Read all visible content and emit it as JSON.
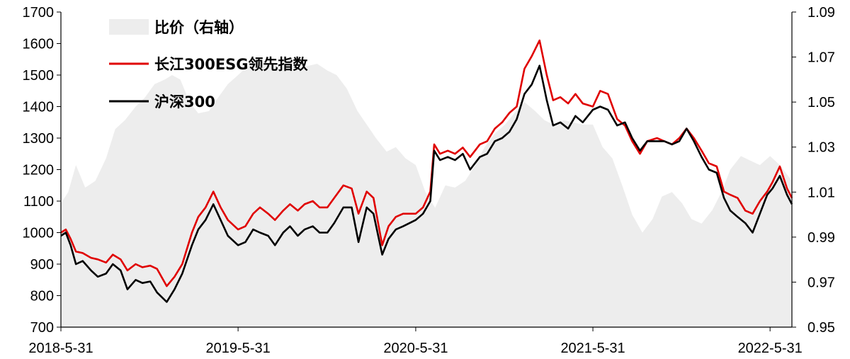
{
  "chart_data": {
    "type": "line",
    "title": "",
    "x_ticks": [
      "2018-5-31",
      "2019-5-31",
      "2020-5-31",
      "2021-5-31",
      "2022-5-31"
    ],
    "x_range": [
      "2018-05-31",
      "2022-07-15"
    ],
    "y_left": {
      "ticks": [
        "700",
        "800",
        "900",
        "1000",
        "1100",
        "1200",
        "1300",
        "1400",
        "1500",
        "1600",
        "1700"
      ],
      "range": [
        700,
        1700
      ]
    },
    "y_right": {
      "ticks": [
        "0.95",
        "0.97",
        "0.99",
        "1.01",
        "1.03",
        "1.05",
        "1.07",
        "1.09"
      ],
      "range": [
        0.95,
        1.09
      ]
    },
    "legend": {
      "position": "top-left"
    },
    "grid": false,
    "series": [
      {
        "name": "比价（右轴）",
        "type": "area",
        "axis": "right",
        "color": "#ededed",
        "points": [
          [
            "2018-05-31",
            1.005
          ],
          [
            "2018-06-15",
            1.01
          ],
          [
            "2018-07-01",
            1.022
          ],
          [
            "2018-07-20",
            1.012
          ],
          [
            "2018-08-10",
            1.015
          ],
          [
            "2018-09-01",
            1.025
          ],
          [
            "2018-09-20",
            1.038
          ],
          [
            "2018-10-10",
            1.042
          ],
          [
            "2018-11-01",
            1.048
          ],
          [
            "2018-11-20",
            1.052
          ],
          [
            "2018-12-10",
            1.058
          ],
          [
            "2018-12-31",
            1.06
          ],
          [
            "2019-01-15",
            1.062
          ],
          [
            "2019-02-01",
            1.06
          ],
          [
            "2019-02-20",
            1.05
          ],
          [
            "2019-03-10",
            1.045
          ],
          [
            "2019-04-01",
            1.046
          ],
          [
            "2019-04-20",
            1.052
          ],
          [
            "2019-05-10",
            1.058
          ],
          [
            "2019-05-31",
            1.062
          ],
          [
            "2019-06-20",
            1.066
          ],
          [
            "2019-07-10",
            1.068
          ],
          [
            "2019-08-01",
            1.067
          ],
          [
            "2019-08-20",
            1.066
          ],
          [
            "2019-09-10",
            1.068
          ],
          [
            "2019-10-01",
            1.065
          ],
          [
            "2019-10-20",
            1.066
          ],
          [
            "2019-11-10",
            1.067
          ],
          [
            "2019-12-01",
            1.064
          ],
          [
            "2019-12-20",
            1.062
          ],
          [
            "2020-01-10",
            1.056
          ],
          [
            "2020-02-01",
            1.046
          ],
          [
            "2020-02-20",
            1.04
          ],
          [
            "2020-03-10",
            1.034
          ],
          [
            "2020-04-01",
            1.028
          ],
          [
            "2020-04-20",
            1.03
          ],
          [
            "2020-05-10",
            1.025
          ],
          [
            "2020-05-31",
            1.022
          ],
          [
            "2020-06-20",
            1.01
          ],
          [
            "2020-07-10",
            1.003
          ],
          [
            "2020-07-31",
            1.013
          ],
          [
            "2020-08-20",
            1.012
          ],
          [
            "2020-09-10",
            1.015
          ],
          [
            "2020-10-01",
            1.022
          ],
          [
            "2020-10-20",
            1.03
          ],
          [
            "2020-11-10",
            1.036
          ],
          [
            "2020-12-01",
            1.04
          ],
          [
            "2020-12-20",
            1.045
          ],
          [
            "2021-01-10",
            1.05
          ],
          [
            "2021-02-01",
            1.046
          ],
          [
            "2021-02-20",
            1.042
          ],
          [
            "2021-03-10",
            1.04
          ],
          [
            "2021-04-01",
            1.042
          ],
          [
            "2021-04-20",
            1.041
          ],
          [
            "2021-05-10",
            1.04
          ],
          [
            "2021-05-31",
            1.04
          ],
          [
            "2021-06-20",
            1.03
          ],
          [
            "2021-07-10",
            1.025
          ],
          [
            "2021-08-01",
            1.012
          ],
          [
            "2021-08-20",
            1.0
          ],
          [
            "2021-09-10",
            0.992
          ],
          [
            "2021-10-01",
            0.998
          ],
          [
            "2021-10-20",
            1.008
          ],
          [
            "2021-11-10",
            1.01
          ],
          [
            "2021-12-01",
            1.005
          ],
          [
            "2021-12-20",
            0.998
          ],
          [
            "2022-01-10",
            0.996
          ],
          [
            "2022-02-01",
            1.002
          ],
          [
            "2022-02-20",
            1.01
          ],
          [
            "2022-03-10",
            1.02
          ],
          [
            "2022-04-01",
            1.026
          ],
          [
            "2022-04-20",
            1.024
          ],
          [
            "2022-05-10",
            1.022
          ],
          [
            "2022-05-31",
            1.026
          ],
          [
            "2022-06-20",
            1.022
          ],
          [
            "2022-07-15",
            1.015
          ]
        ]
      },
      {
        "name": "长江300ESG领先指数",
        "type": "line",
        "axis": "left",
        "color": "#e00000",
        "points": [
          [
            "2018-05-31",
            1000
          ],
          [
            "2018-06-10",
            1010
          ],
          [
            "2018-06-20",
            980
          ],
          [
            "2018-07-01",
            940
          ],
          [
            "2018-07-15",
            935
          ],
          [
            "2018-08-01",
            920
          ],
          [
            "2018-08-15",
            915
          ],
          [
            "2018-09-01",
            905
          ],
          [
            "2018-09-15",
            930
          ],
          [
            "2018-10-01",
            915
          ],
          [
            "2018-10-15",
            880
          ],
          [
            "2018-11-01",
            900
          ],
          [
            "2018-11-15",
            890
          ],
          [
            "2018-12-01",
            895
          ],
          [
            "2018-12-15",
            885
          ],
          [
            "2019-01-04",
            830
          ],
          [
            "2019-01-20",
            860
          ],
          [
            "2019-02-05",
            900
          ],
          [
            "2019-02-25",
            1000
          ],
          [
            "2019-03-10",
            1050
          ],
          [
            "2019-03-25",
            1080
          ],
          [
            "2019-04-10",
            1130
          ],
          [
            "2019-04-25",
            1080
          ],
          [
            "2019-05-10",
            1040
          ],
          [
            "2019-05-31",
            1010
          ],
          [
            "2019-06-15",
            1020
          ],
          [
            "2019-07-01",
            1060
          ],
          [
            "2019-07-15",
            1080
          ],
          [
            "2019-08-01",
            1060
          ],
          [
            "2019-08-15",
            1040
          ],
          [
            "2019-09-01",
            1070
          ],
          [
            "2019-09-15",
            1090
          ],
          [
            "2019-10-01",
            1070
          ],
          [
            "2019-10-15",
            1090
          ],
          [
            "2019-11-01",
            1100
          ],
          [
            "2019-11-15",
            1080
          ],
          [
            "2019-12-01",
            1080
          ],
          [
            "2019-12-15",
            1110
          ],
          [
            "2020-01-03",
            1150
          ],
          [
            "2020-01-20",
            1140
          ],
          [
            "2020-02-03",
            1060
          ],
          [
            "2020-02-20",
            1130
          ],
          [
            "2020-03-05",
            1110
          ],
          [
            "2020-03-23",
            960
          ],
          [
            "2020-04-05",
            1020
          ],
          [
            "2020-04-20",
            1050
          ],
          [
            "2020-05-05",
            1060
          ],
          [
            "2020-05-31",
            1060
          ],
          [
            "2020-06-15",
            1080
          ],
          [
            "2020-06-30",
            1130
          ],
          [
            "2020-07-08",
            1280
          ],
          [
            "2020-07-20",
            1250
          ],
          [
            "2020-08-05",
            1260
          ],
          [
            "2020-08-20",
            1250
          ],
          [
            "2020-09-05",
            1270
          ],
          [
            "2020-09-20",
            1240
          ],
          [
            "2020-10-10",
            1280
          ],
          [
            "2020-10-25",
            1290
          ],
          [
            "2020-11-10",
            1330
          ],
          [
            "2020-11-25",
            1350
          ],
          [
            "2020-12-10",
            1380
          ],
          [
            "2020-12-25",
            1400
          ],
          [
            "2021-01-10",
            1520
          ],
          [
            "2021-01-25",
            1560
          ],
          [
            "2021-02-10",
            1610
          ],
          [
            "2021-02-25",
            1500
          ],
          [
            "2021-03-10",
            1420
          ],
          [
            "2021-03-25",
            1430
          ],
          [
            "2021-04-10",
            1410
          ],
          [
            "2021-04-25",
            1440
          ],
          [
            "2021-05-10",
            1410
          ],
          [
            "2021-05-31",
            1400
          ],
          [
            "2021-06-15",
            1450
          ],
          [
            "2021-07-01",
            1440
          ],
          [
            "2021-07-20",
            1360
          ],
          [
            "2021-08-05",
            1340
          ],
          [
            "2021-08-20",
            1290
          ],
          [
            "2021-09-05",
            1250
          ],
          [
            "2021-09-20",
            1290
          ],
          [
            "2021-10-10",
            1300
          ],
          [
            "2021-10-25",
            1290
          ],
          [
            "2021-11-10",
            1280
          ],
          [
            "2021-11-25",
            1300
          ],
          [
            "2021-12-10",
            1330
          ],
          [
            "2021-12-25",
            1300
          ],
          [
            "2022-01-10",
            1260
          ],
          [
            "2022-01-25",
            1220
          ],
          [
            "2022-02-10",
            1210
          ],
          [
            "2022-02-25",
            1130
          ],
          [
            "2022-03-10",
            1120
          ],
          [
            "2022-03-25",
            1110
          ],
          [
            "2022-04-10",
            1070
          ],
          [
            "2022-04-25",
            1060
          ],
          [
            "2022-05-10",
            1100
          ],
          [
            "2022-05-25",
            1130
          ],
          [
            "2022-06-05",
            1160
          ],
          [
            "2022-06-20",
            1210
          ],
          [
            "2022-07-05",
            1140
          ],
          [
            "2022-07-15",
            1110
          ]
        ]
      },
      {
        "name": "沪深300",
        "type": "line",
        "axis": "left",
        "color": "#000000",
        "points": [
          [
            "2018-05-31",
            990
          ],
          [
            "2018-06-10",
            1000
          ],
          [
            "2018-06-20",
            960
          ],
          [
            "2018-07-01",
            900
          ],
          [
            "2018-07-15",
            910
          ],
          [
            "2018-08-01",
            880
          ],
          [
            "2018-08-15",
            860
          ],
          [
            "2018-09-01",
            870
          ],
          [
            "2018-09-15",
            900
          ],
          [
            "2018-10-01",
            880
          ],
          [
            "2018-10-15",
            820
          ],
          [
            "2018-11-01",
            850
          ],
          [
            "2018-11-15",
            840
          ],
          [
            "2018-12-01",
            845
          ],
          [
            "2018-12-15",
            810
          ],
          [
            "2019-01-04",
            780
          ],
          [
            "2019-01-20",
            820
          ],
          [
            "2019-02-05",
            870
          ],
          [
            "2019-02-25",
            960
          ],
          [
            "2019-03-10",
            1010
          ],
          [
            "2019-03-25",
            1040
          ],
          [
            "2019-04-10",
            1090
          ],
          [
            "2019-04-25",
            1040
          ],
          [
            "2019-05-10",
            990
          ],
          [
            "2019-05-31",
            960
          ],
          [
            "2019-06-15",
            970
          ],
          [
            "2019-07-01",
            1010
          ],
          [
            "2019-07-15",
            1000
          ],
          [
            "2019-08-01",
            990
          ],
          [
            "2019-08-15",
            960
          ],
          [
            "2019-09-01",
            1000
          ],
          [
            "2019-09-15",
            1020
          ],
          [
            "2019-10-01",
            990
          ],
          [
            "2019-10-15",
            1010
          ],
          [
            "2019-11-01",
            1020
          ],
          [
            "2019-11-15",
            1000
          ],
          [
            "2019-12-01",
            1000
          ],
          [
            "2019-12-15",
            1030
          ],
          [
            "2020-01-03",
            1080
          ],
          [
            "2020-01-20",
            1080
          ],
          [
            "2020-02-03",
            970
          ],
          [
            "2020-02-20",
            1080
          ],
          [
            "2020-03-05",
            1060
          ],
          [
            "2020-03-23",
            930
          ],
          [
            "2020-04-05",
            980
          ],
          [
            "2020-04-20",
            1010
          ],
          [
            "2020-05-05",
            1020
          ],
          [
            "2020-05-31",
            1040
          ],
          [
            "2020-06-15",
            1060
          ],
          [
            "2020-06-30",
            1100
          ],
          [
            "2020-07-08",
            1260
          ],
          [
            "2020-07-20",
            1230
          ],
          [
            "2020-08-05",
            1240
          ],
          [
            "2020-08-20",
            1230
          ],
          [
            "2020-09-05",
            1250
          ],
          [
            "2020-09-20",
            1200
          ],
          [
            "2020-10-10",
            1240
          ],
          [
            "2020-10-25",
            1250
          ],
          [
            "2020-11-10",
            1290
          ],
          [
            "2020-11-25",
            1300
          ],
          [
            "2020-12-10",
            1320
          ],
          [
            "2020-12-25",
            1360
          ],
          [
            "2021-01-10",
            1440
          ],
          [
            "2021-01-25",
            1470
          ],
          [
            "2021-02-10",
            1530
          ],
          [
            "2021-02-25",
            1420
          ],
          [
            "2021-03-10",
            1340
          ],
          [
            "2021-03-25",
            1350
          ],
          [
            "2021-04-10",
            1330
          ],
          [
            "2021-04-25",
            1370
          ],
          [
            "2021-05-10",
            1350
          ],
          [
            "2021-05-31",
            1390
          ],
          [
            "2021-06-15",
            1400
          ],
          [
            "2021-07-01",
            1390
          ],
          [
            "2021-07-20",
            1340
          ],
          [
            "2021-08-05",
            1350
          ],
          [
            "2021-08-20",
            1300
          ],
          [
            "2021-09-05",
            1260
          ],
          [
            "2021-09-20",
            1290
          ],
          [
            "2021-10-10",
            1290
          ],
          [
            "2021-10-25",
            1290
          ],
          [
            "2021-11-10",
            1280
          ],
          [
            "2021-11-25",
            1290
          ],
          [
            "2021-12-10",
            1330
          ],
          [
            "2021-12-25",
            1290
          ],
          [
            "2022-01-10",
            1240
          ],
          [
            "2022-01-25",
            1200
          ],
          [
            "2022-02-10",
            1190
          ],
          [
            "2022-02-25",
            1110
          ],
          [
            "2022-03-10",
            1070
          ],
          [
            "2022-03-25",
            1050
          ],
          [
            "2022-04-10",
            1030
          ],
          [
            "2022-04-25",
            1000
          ],
          [
            "2022-05-10",
            1060
          ],
          [
            "2022-05-25",
            1120
          ],
          [
            "2022-06-05",
            1140
          ],
          [
            "2022-06-20",
            1180
          ],
          [
            "2022-07-05",
            1120
          ],
          [
            "2022-07-15",
            1090
          ]
        ]
      }
    ]
  }
}
